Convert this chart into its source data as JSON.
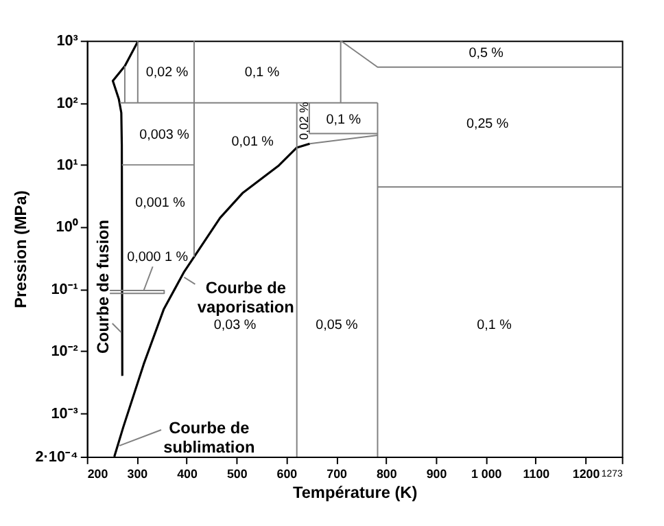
{
  "chart_data": {
    "type": "line",
    "xlabel": "Température (K)",
    "ylabel": "Pression (MPa)",
    "xlim": [
      200,
      1273
    ],
    "ylim": [
      0.0002,
      1000
    ],
    "log": "y",
    "grid": false,
    "xticks": [
      200,
      300,
      400,
      500,
      600,
      700,
      800,
      900,
      {
        "value": 1000,
        "label": "1 000"
      },
      1100,
      1200,
      {
        "value": 1273,
        "label": "1273"
      }
    ],
    "yticks": [
      {
        "value": 0.0002,
        "label": "2·10⁻⁴"
      },
      {
        "value": 0.001,
        "label": "10⁻³"
      },
      {
        "value": 0.01,
        "label": "10⁻²"
      },
      {
        "value": 0.1,
        "label": "10⁻¹"
      },
      {
        "value": 1,
        "label": "10⁰"
      },
      {
        "value": 10,
        "label": "10¹"
      },
      {
        "value": 100,
        "label": "10²"
      },
      {
        "value": 1000,
        "label": "10³"
      }
    ],
    "series": [
      {
        "color": "#000000",
        "x": [
          303,
          276,
          252,
          264,
          269,
          270,
          271
        ],
        "values": [
          1000,
          390,
          225,
          115,
          69,
          21,
          0.004
        ]
      },
      {
        "color": "#000000",
        "x": [
          255,
          273,
          314,
          354,
          395,
          467,
          512,
          585,
          621,
          647
        ],
        "values": [
          0.0002,
          0.0006,
          0.0062,
          0.047,
          0.19,
          1.4,
          3.5,
          9.8,
          19,
          22
        ]
      },
      {
        "type": "line",
        "color": "#808080",
        "x": [
          415,
          415
        ],
        "values": [
          1000,
          0.33
        ]
      },
      {
        "type": "line",
        "color": "#808080",
        "x": [
          266,
          783
        ],
        "values": [
          100,
          100
        ]
      },
      {
        "type": "line",
        "color": "#808080",
        "x": [
          276,
          276
        ],
        "values": [
          390,
          100
        ]
      },
      {
        "type": "line",
        "color": "#808080",
        "x": [
          302,
          302
        ],
        "values": [
          1000,
          100
        ]
      },
      {
        "type": "line",
        "color": "#808080",
        "x": [
          270,
          415
        ],
        "values": [
          10,
          10
        ]
      },
      {
        "type": "line",
        "color": "#808080",
        "x": [
          621,
          621
        ],
        "values": [
          100,
          0.0002
        ]
      },
      {
        "type": "line",
        "color": "#808080",
        "x": [
          646,
          646
        ],
        "values": [
          100,
          32
        ]
      },
      {
        "type": "line",
        "color": "#808080",
        "x": [
          646,
          783
        ],
        "values": [
          32,
          32
        ]
      },
      {
        "type": "line",
        "color": "#808080",
        "x": [
          647,
          783
        ],
        "values": [
          22,
          30
        ]
      },
      {
        "type": "line",
        "color": "#808080",
        "x": [
          783,
          783
        ],
        "values": [
          100,
          0.0002
        ]
      },
      {
        "type": "line",
        "color": "#808080",
        "x": [
          709,
          709
        ],
        "values": [
          1000,
          100
        ]
      },
      {
        "type": "line",
        "color": "#808080",
        "x": [
          709,
          783,
          1273
        ],
        "values": [
          1000,
          375,
          375
        ]
      },
      {
        "type": "line",
        "color": "#808080",
        "x": [
          783,
          1273
        ],
        "values": [
          4.4,
          4.4
        ]
      },
      {
        "type": "line",
        "color": "#808080",
        "x": [
          246,
          355,
          355,
          246
        ],
        "values": [
          0.095,
          0.095,
          0.085,
          0.085
        ]
      },
      {
        "type": "line",
        "color": "#808080",
        "x": [
          332,
          314
        ],
        "values": [
          0.23,
          0.095
        ]
      },
      {
        "type": "line",
        "color": "#808080",
        "x": [
          251,
          269
        ],
        "values": [
          0.028,
          0.02
        ]
      },
      {
        "type": "line",
        "color": "#808080",
        "x": [
          417,
          395
        ],
        "values": [
          0.12,
          0.155
        ]
      },
      {
        "type": "line",
        "color": "#808080",
        "x": [
          349,
          265
        ],
        "values": [
          0.00054,
          0.0003
        ]
      }
    ],
    "annotations": [
      "0,02 %",
      "0,1 %",
      "0,5 %",
      "0,003 %",
      "0,01 %",
      "0,02 %",
      "0,1 %",
      "0,25 %",
      "0,001 %",
      "0,000 1 %",
      "0,03 %",
      "0,05 %",
      "0,1 %",
      "Courbe de fusion",
      "Courbe de\nvaporisation",
      "Courbe de\nsublimation"
    ]
  }
}
